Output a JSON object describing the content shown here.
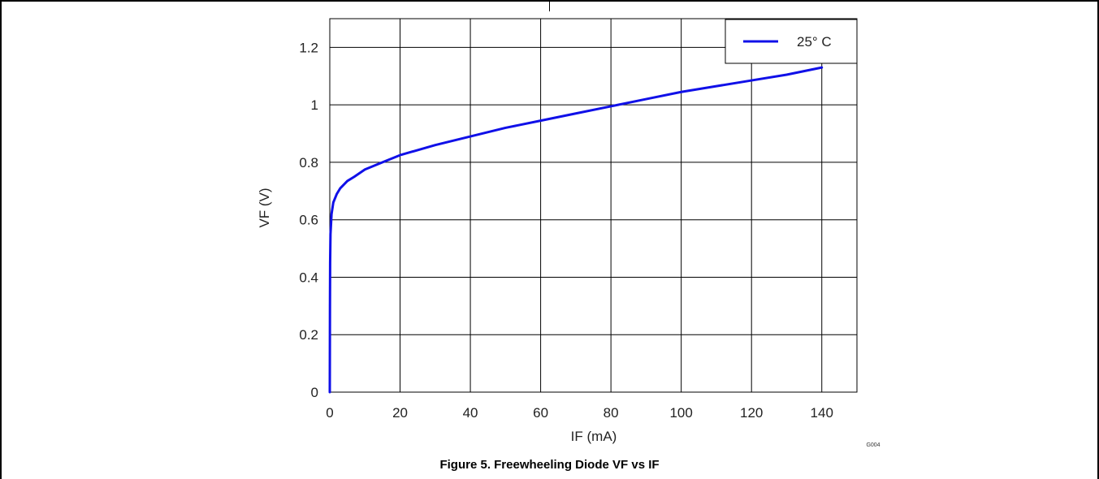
{
  "figure": {
    "caption": "Figure 5. Freewheeling Diode VF vs IF",
    "code": "G004"
  },
  "colors": {
    "series": "#1010e8",
    "grid": "#000000"
  },
  "chart_data": {
    "type": "line",
    "title": "",
    "xlabel": "IF (mA)",
    "ylabel": "VF (V)",
    "xlim": [
      0,
      150
    ],
    "ylim": [
      0,
      1.3
    ],
    "xticks": [
      0,
      20,
      40,
      60,
      80,
      100,
      120,
      140
    ],
    "yticks": [
      0,
      0.2,
      0.4,
      0.6,
      0.8,
      1,
      1.2
    ],
    "xtick_labels": [
      "0",
      "20",
      "40",
      "60",
      "80",
      "100",
      "120",
      "140"
    ],
    "ytick_labels": [
      "0",
      "0.2",
      "0.4",
      "0.6",
      "0.8",
      "1",
      "1.2"
    ],
    "grid": true,
    "legend_position": "top-right",
    "series": [
      {
        "name": "25° C",
        "x": [
          0,
          0.05,
          0.1,
          0.2,
          0.5,
          1,
          2,
          3,
          5,
          7,
          10,
          15,
          20,
          30,
          40,
          50,
          60,
          70,
          80,
          90,
          100,
          110,
          120,
          130,
          140
        ],
        "y": [
          0,
          0.3,
          0.45,
          0.55,
          0.62,
          0.66,
          0.69,
          0.71,
          0.735,
          0.75,
          0.775,
          0.8,
          0.825,
          0.86,
          0.89,
          0.92,
          0.945,
          0.97,
          0.995,
          1.02,
          1.045,
          1.065,
          1.085,
          1.105,
          1.13
        ]
      }
    ]
  }
}
